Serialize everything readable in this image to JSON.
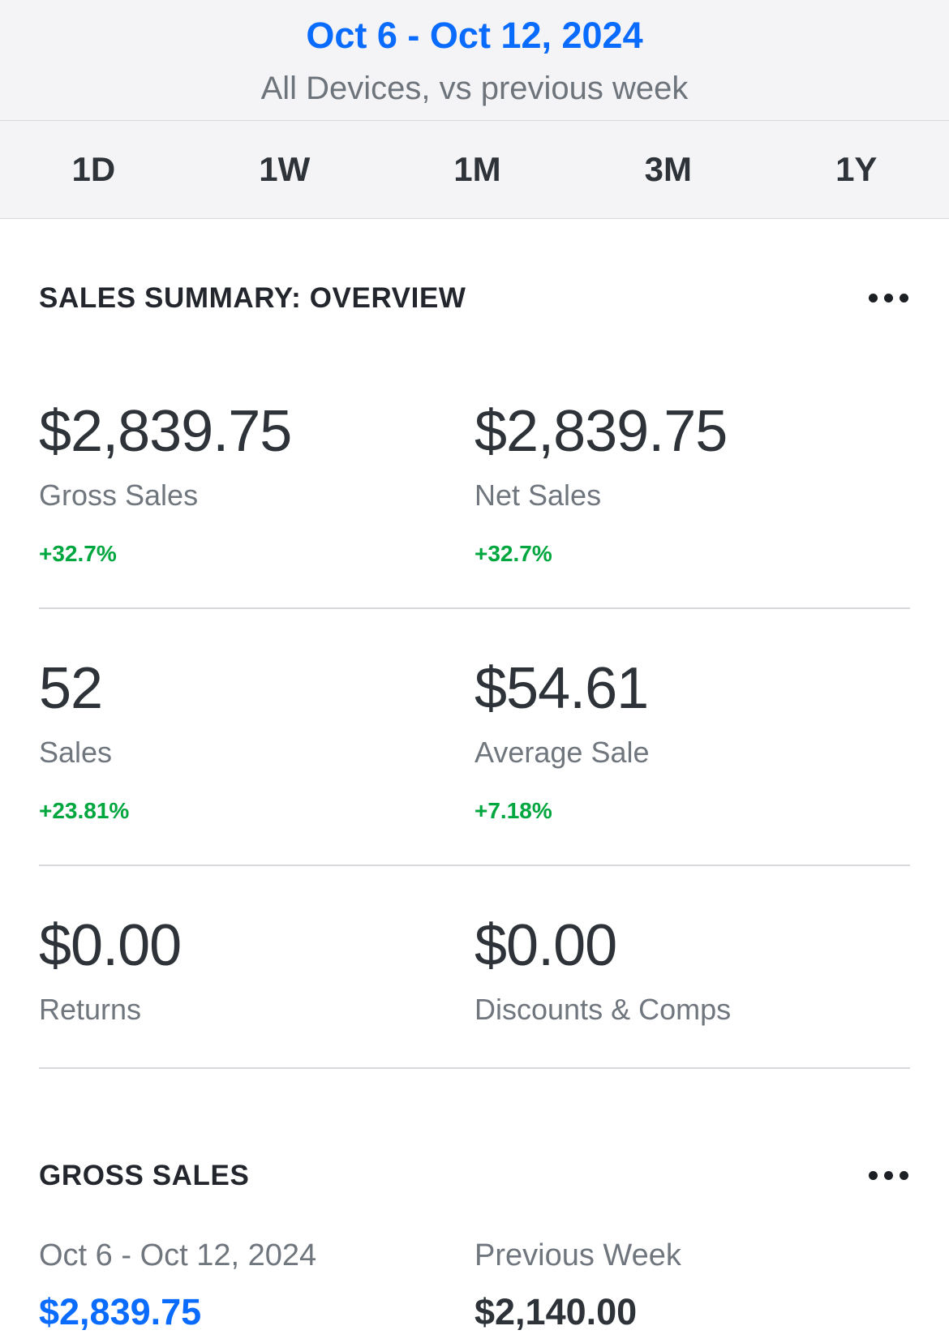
{
  "header": {
    "date_range": "Oct 6 - Oct 12, 2024",
    "subtitle": "All Devices, vs previous week",
    "tabs": [
      {
        "label": "1D"
      },
      {
        "label": "1W"
      },
      {
        "label": "1M"
      },
      {
        "label": "3M"
      },
      {
        "label": "1Y"
      }
    ]
  },
  "sales_summary": {
    "title": "SALES SUMMARY: OVERVIEW",
    "metrics": [
      {
        "value": "$2,839.75",
        "label": "Gross Sales",
        "change": "+32.7%"
      },
      {
        "value": "$2,839.75",
        "label": "Net Sales",
        "change": "+32.7%"
      },
      {
        "value": "52",
        "label": "Sales",
        "change": "+23.81%"
      },
      {
        "value": "$54.61",
        "label": "Average Sale",
        "change": "+7.18%"
      },
      {
        "value": "$0.00",
        "label": "Returns",
        "change": ""
      },
      {
        "value": "$0.00",
        "label": "Discounts & Comps",
        "change": ""
      }
    ]
  },
  "gross_sales": {
    "title": "GROSS SALES",
    "current": {
      "label": "Oct 6 - Oct 12, 2024",
      "value": "$2,839.75"
    },
    "previous": {
      "label": "Previous Week",
      "value": "$2,140.00"
    }
  },
  "icons": {
    "overflow_menu": "ellipsis-icon"
  },
  "colors": {
    "accent_blue": "#0a6bff",
    "positive_green": "#00a63e",
    "dark_text": "#2d3338",
    "gray_text": "#70767d",
    "header_background": "#f4f4f6"
  }
}
